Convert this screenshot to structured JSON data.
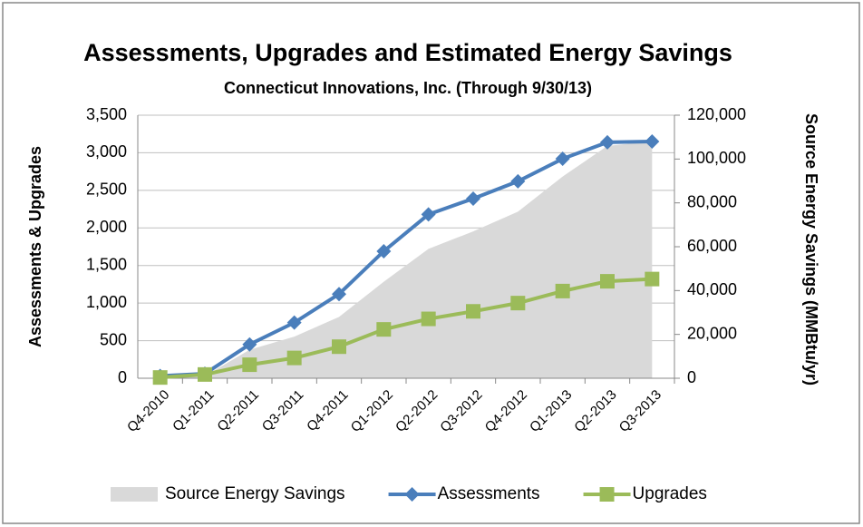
{
  "chart_data": {
    "type": "line",
    "title": "Assessments, Upgrades and Estimated Energy Savings",
    "subtitle": "Connecticut Innovations, Inc. (Through 9/30/13)",
    "ylabel": "Assessments & Upgrades",
    "y2label": "Source Energy Savings (MMBtu/yr)",
    "categories": [
      "Q4-2010",
      "Q1-2011",
      "Q2-2011",
      "Q3-2011",
      "Q4-2011",
      "Q1-2012",
      "Q2-2012",
      "Q3-2012",
      "Q4-2012",
      "Q1-2013",
      "Q2-2013",
      "Q3-2013"
    ],
    "series": [
      {
        "name": "Source Energy Savings",
        "color": "#d9d9d9",
        "mark": "area",
        "axis": "y2",
        "values": [
          0,
          1000,
          13000,
          19000,
          28000,
          44000,
          59000,
          67000,
          76000,
          92000,
          106000,
          108000
        ]
      },
      {
        "name": "Assessments",
        "color": "#4a7ebb",
        "mark": "line",
        "marker": "diamond",
        "values": [
          30,
          60,
          450,
          740,
          1120,
          1690,
          2180,
          2390,
          2620,
          2920,
          3140,
          3150
        ]
      },
      {
        "name": "Upgrades",
        "color": "#9bbb59",
        "mark": "line",
        "marker": "square",
        "values": [
          10,
          50,
          180,
          270,
          420,
          650,
          790,
          890,
          1000,
          1160,
          1290,
          1320
        ]
      }
    ],
    "ylim": [
      0,
      3500
    ],
    "yticks": [
      0,
      500,
      {
        "value": 1000,
        "label": "1,000"
      },
      {
        "value": 1500,
        "label": "1,500"
      },
      {
        "value": 2000,
        "label": "2,000"
      },
      {
        "value": 2500,
        "label": "2,500"
      },
      {
        "value": 3000,
        "label": "3,000"
      },
      {
        "value": 3500,
        "label": "3,500"
      }
    ],
    "y2lim": [
      0,
      120000
    ],
    "y2ticks": [
      0,
      {
        "value": 20000,
        "label": "20,000"
      },
      {
        "value": 40000,
        "label": "40,000"
      },
      {
        "value": 60000,
        "label": "60,000"
      },
      {
        "value": 80000,
        "label": "80,000"
      },
      {
        "value": 100000,
        "label": "100,000"
      },
      {
        "value": 120000,
        "label": "120,000"
      }
    ],
    "grid": true,
    "legend": "bottom"
  }
}
